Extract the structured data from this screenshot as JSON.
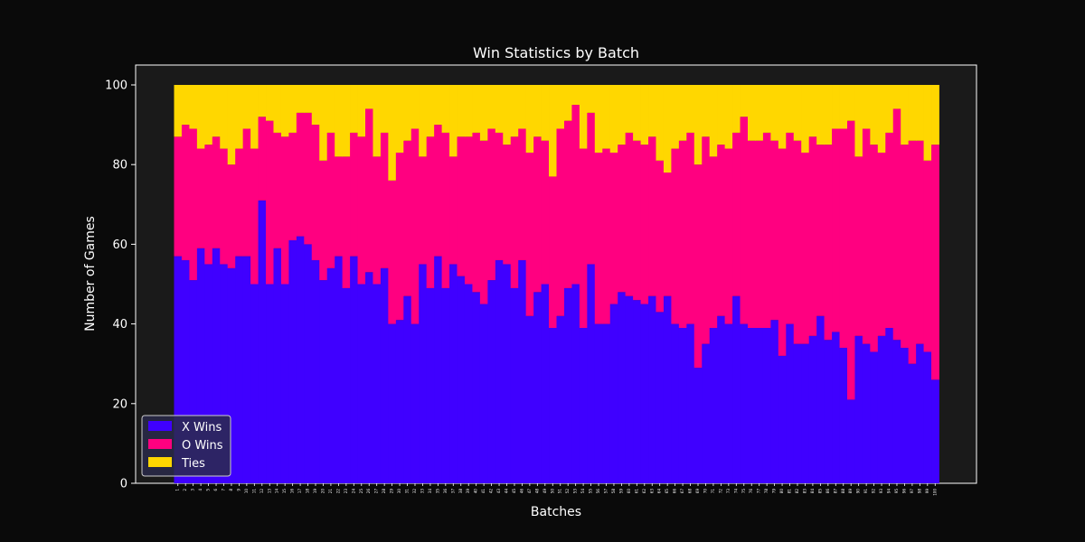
{
  "chart_data": {
    "type": "bar",
    "stacked": true,
    "title": "Win Statistics by Batch",
    "xlabel": "Batches",
    "ylabel": "Number of Games",
    "ylim": [
      0,
      105
    ],
    "yticks": [
      0,
      20,
      40,
      60,
      80,
      100
    ],
    "grid": false,
    "legend_position": "bottom-left",
    "categories": [
      "1",
      "2",
      "3",
      "4",
      "5",
      "6",
      "7",
      "8",
      "9",
      "10",
      "11",
      "12",
      "13",
      "14",
      "15",
      "16",
      "17",
      "18",
      "19",
      "20",
      "21",
      "22",
      "23",
      "24",
      "25",
      "26",
      "27",
      "28",
      "29",
      "30",
      "31",
      "32",
      "33",
      "34",
      "35",
      "36",
      "37",
      "38",
      "39",
      "40",
      "41",
      "42",
      "43",
      "44",
      "45",
      "46",
      "47",
      "48",
      "49",
      "50",
      "51",
      "52",
      "53",
      "54",
      "55",
      "56",
      "57",
      "58",
      "59",
      "60",
      "61",
      "62",
      "63",
      "64",
      "65",
      "66",
      "67",
      "68",
      "69",
      "70",
      "71",
      "72",
      "73",
      "74",
      "75",
      "76",
      "77",
      "78",
      "79",
      "80",
      "81",
      "82",
      "83",
      "84",
      "85",
      "86",
      "87",
      "88",
      "89",
      "90",
      "91",
      "92",
      "93",
      "94",
      "95",
      "96",
      "97",
      "98",
      "99",
      "100"
    ],
    "series": [
      {
        "name": "X Wins",
        "color": "#3f00ff",
        "values": [
          57,
          56,
          51,
          59,
          55,
          59,
          55,
          54,
          57,
          57,
          50,
          71,
          50,
          59,
          50,
          61,
          62,
          60,
          56,
          51,
          54,
          57,
          49,
          57,
          50,
          53,
          50,
          54,
          40,
          41,
          47,
          40,
          55,
          49,
          57,
          49,
          55,
          52,
          50,
          48,
          45,
          51,
          56,
          55,
          49,
          56,
          42,
          48,
          50,
          39,
          42,
          49,
          50,
          39,
          55,
          40,
          40,
          45,
          48,
          47,
          46,
          45,
          47,
          43,
          47,
          40,
          39,
          40,
          29,
          35,
          39,
          42,
          40,
          47,
          40,
          39,
          39,
          39,
          41,
          32,
          40,
          35,
          35,
          37,
          42,
          36,
          38,
          34,
          21,
          37,
          35,
          33,
          37,
          39,
          36,
          34,
          30,
          35,
          33,
          26
        ]
      },
      {
        "name": "O Wins",
        "color": "#ff0080",
        "values": [
          30,
          34,
          38,
          25,
          30,
          28,
          29,
          26,
          27,
          32,
          34,
          21,
          41,
          29,
          37,
          27,
          31,
          33,
          34,
          30,
          34,
          25,
          33,
          31,
          37,
          41,
          32,
          34,
          36,
          42,
          39,
          49,
          27,
          38,
          33,
          39,
          27,
          35,
          37,
          40,
          41,
          38,
          32,
          30,
          38,
          33,
          41,
          39,
          36,
          38,
          47,
          42,
          45,
          45,
          38,
          43,
          44,
          38,
          37,
          41,
          40,
          40,
          40,
          38,
          31,
          44,
          47,
          48,
          51,
          52,
          43,
          43,
          44,
          41,
          52,
          47,
          47,
          49,
          45,
          52,
          48,
          51,
          48,
          50,
          43,
          49,
          51,
          55,
          70,
          45,
          54,
          52,
          46,
          49,
          58,
          51,
          56,
          51,
          48,
          59
        ]
      },
      {
        "name": "Ties",
        "color": "#ffd700",
        "values": [
          13,
          10,
          11,
          16,
          15,
          13,
          16,
          20,
          16,
          11,
          16,
          8,
          9,
          12,
          13,
          12,
          7,
          7,
          10,
          19,
          12,
          18,
          18,
          12,
          13,
          6,
          18,
          12,
          24,
          17,
          14,
          11,
          18,
          13,
          10,
          12,
          18,
          13,
          13,
          12,
          14,
          11,
          12,
          15,
          13,
          11,
          17,
          13,
          14,
          23,
          11,
          9,
          5,
          16,
          7,
          17,
          16,
          17,
          15,
          12,
          14,
          15,
          13,
          19,
          22,
          16,
          14,
          12,
          20,
          13,
          18,
          15,
          16,
          12,
          8,
          14,
          14,
          12,
          14,
          16,
          12,
          14,
          17,
          13,
          15,
          15,
          11,
          11,
          9,
          18,
          11,
          15,
          17,
          12,
          6,
          15,
          14,
          14,
          19,
          15
        ]
      }
    ]
  }
}
